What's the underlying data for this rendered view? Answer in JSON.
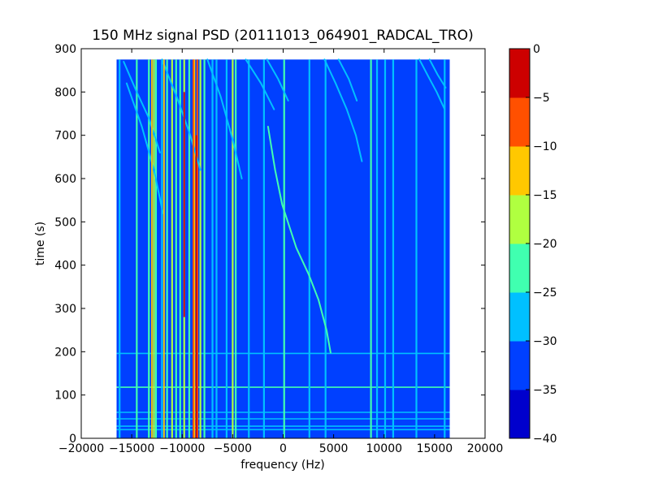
{
  "chart_data": {
    "type": "heatmap",
    "title": "150 MHz signal PSD (20111013_064901_RADCAL_TRO)",
    "xlabel": "frequency (Hz)",
    "ylabel": "time (s)",
    "xlim": [
      -20000,
      20000
    ],
    "ylim": [
      0,
      900
    ],
    "xticks": [
      -20000,
      -15000,
      -10000,
      -5000,
      0,
      5000,
      10000,
      15000,
      20000
    ],
    "xtick_labels": [
      "−20000",
      "−15000",
      "−10000",
      "−5000",
      "0",
      "5000",
      "10000",
      "15000",
      "20000"
    ],
    "yticks": [
      0,
      100,
      200,
      300,
      400,
      500,
      600,
      700,
      800,
      900
    ],
    "ytick_labels": [
      "0",
      "100",
      "200",
      "300",
      "400",
      "500",
      "600",
      "700",
      "800",
      "900"
    ],
    "data_extent": {
      "freq_min": -16500,
      "freq_max": 16500,
      "time_min": 0,
      "time_max": 875
    },
    "background_level": -33,
    "colorbar": {
      "levels": [
        -40,
        -35,
        -30,
        -25,
        -20,
        -15,
        -10,
        -5,
        0
      ],
      "tick_labels": [
        "−40",
        "−35",
        "−30",
        "−25",
        "−20",
        "−15",
        "−10",
        "−5",
        "0"
      ],
      "colors": [
        "#0000cd",
        "#0040ff",
        "#00c0ff",
        "#40ffb0",
        "#b0ff40",
        "#ffc800",
        "#ff5000",
        "#cd0000"
      ]
    },
    "vertical_lines": [
      {
        "freq": -16200,
        "level": -28
      },
      {
        "freq": -14500,
        "level": -25
      },
      {
        "freq": -13300,
        "level": -22
      },
      {
        "freq": -12800,
        "level": -18
      },
      {
        "freq": -12600,
        "level": -24
      },
      {
        "freq": -12000,
        "level": -26
      },
      {
        "freq": -11500,
        "level": -22
      },
      {
        "freq": -11000,
        "level": -20
      },
      {
        "freq": -10600,
        "level": -24
      },
      {
        "freq": -10200,
        "level": -22
      },
      {
        "freq": -9800,
        "level": -16
      },
      {
        "freq": -9300,
        "level": -22
      },
      {
        "freq": -8800,
        "level": -15
      },
      {
        "freq": -8500,
        "level": -10
      },
      {
        "freq": -8200,
        "level": -20
      },
      {
        "freq": -7800,
        "level": -24
      },
      {
        "freq": -7000,
        "level": -26
      },
      {
        "freq": -6600,
        "level": -26
      },
      {
        "freq": -5600,
        "level": -28
      },
      {
        "freq": -5000,
        "level": -20
      },
      {
        "freq": -4700,
        "level": -24
      },
      {
        "freq": -3400,
        "level": -26
      },
      {
        "freq": -1900,
        "level": -28
      },
      {
        "freq": 100,
        "level": -24
      },
      {
        "freq": 2600,
        "level": -29
      },
      {
        "freq": 4200,
        "level": -29
      },
      {
        "freq": 8700,
        "level": -24
      },
      {
        "freq": 9300,
        "level": -27
      },
      {
        "freq": 10100,
        "level": -28
      },
      {
        "freq": 10900,
        "level": -28
      },
      {
        "freq": 13200,
        "level": -27
      },
      {
        "freq": 16000,
        "level": -26
      }
    ],
    "hot_lines": [
      {
        "freq": -9800,
        "level": -3,
        "t_from": 280,
        "t_to": 800
      },
      {
        "freq": -8600,
        "level": -5,
        "t_from": 0,
        "t_to": 700
      },
      {
        "freq": -8900,
        "level": -10,
        "t_from": 0,
        "t_to": 875
      },
      {
        "freq": -11800,
        "level": -13,
        "t_from": 0,
        "t_to": 875
      },
      {
        "freq": -13000,
        "level": -14,
        "t_from": 0,
        "t_to": 875
      }
    ],
    "horizontal_lines": [
      {
        "time": 20,
        "level": -27
      },
      {
        "time": 28,
        "level": -28
      },
      {
        "time": 45,
        "level": -27
      },
      {
        "time": 60,
        "level": -29
      },
      {
        "time": 118,
        "level": -24
      },
      {
        "time": 196,
        "level": -27
      }
    ],
    "drifting_tracks": [
      {
        "level": -22,
        "points": [
          [
            4700,
            198
          ],
          [
            4300,
            250
          ],
          [
            3500,
            320
          ],
          [
            2500,
            380
          ],
          [
            1300,
            440
          ],
          [
            600,
            490
          ],
          [
            -100,
            540
          ],
          [
            -800,
            620
          ],
          [
            -1500,
            720
          ]
        ]
      },
      {
        "level": -29,
        "points": [
          [
            -15500,
            820
          ],
          [
            -14000,
            720
          ],
          [
            -12800,
            620
          ],
          [
            -11900,
            520
          ]
        ]
      },
      {
        "level": -28,
        "points": [
          [
            -15800,
            870
          ],
          [
            -14500,
            800
          ],
          [
            -13300,
            740
          ],
          [
            -12200,
            660
          ]
        ]
      },
      {
        "level": -29,
        "points": [
          [
            -12000,
            875
          ],
          [
            -10400,
            780
          ],
          [
            -9200,
            700
          ],
          [
            -8200,
            620
          ]
        ]
      },
      {
        "level": -28,
        "points": [
          [
            -7500,
            875
          ],
          [
            -6200,
            790
          ],
          [
            -5000,
            690
          ],
          [
            -4100,
            600
          ]
        ]
      },
      {
        "level": -29,
        "points": [
          [
            -3700,
            875
          ],
          [
            -2200,
            820
          ],
          [
            -900,
            760
          ]
        ]
      },
      {
        "level": -29,
        "points": [
          [
            -1600,
            875
          ],
          [
            -500,
            830
          ],
          [
            500,
            780
          ]
        ]
      },
      {
        "level": -27,
        "points": [
          [
            4100,
            875
          ],
          [
            5200,
            820
          ],
          [
            6300,
            760
          ],
          [
            7200,
            700
          ],
          [
            7800,
            640
          ]
        ]
      },
      {
        "level": -29,
        "points": [
          [
            5500,
            875
          ],
          [
            6500,
            830
          ],
          [
            7300,
            780
          ]
        ]
      },
      {
        "level": -28,
        "points": [
          [
            13500,
            875
          ],
          [
            14400,
            835
          ],
          [
            15200,
            800
          ],
          [
            16000,
            760
          ]
        ]
      },
      {
        "level": -29,
        "points": [
          [
            14500,
            875
          ],
          [
            15300,
            840
          ],
          [
            16100,
            810
          ]
        ]
      }
    ]
  }
}
